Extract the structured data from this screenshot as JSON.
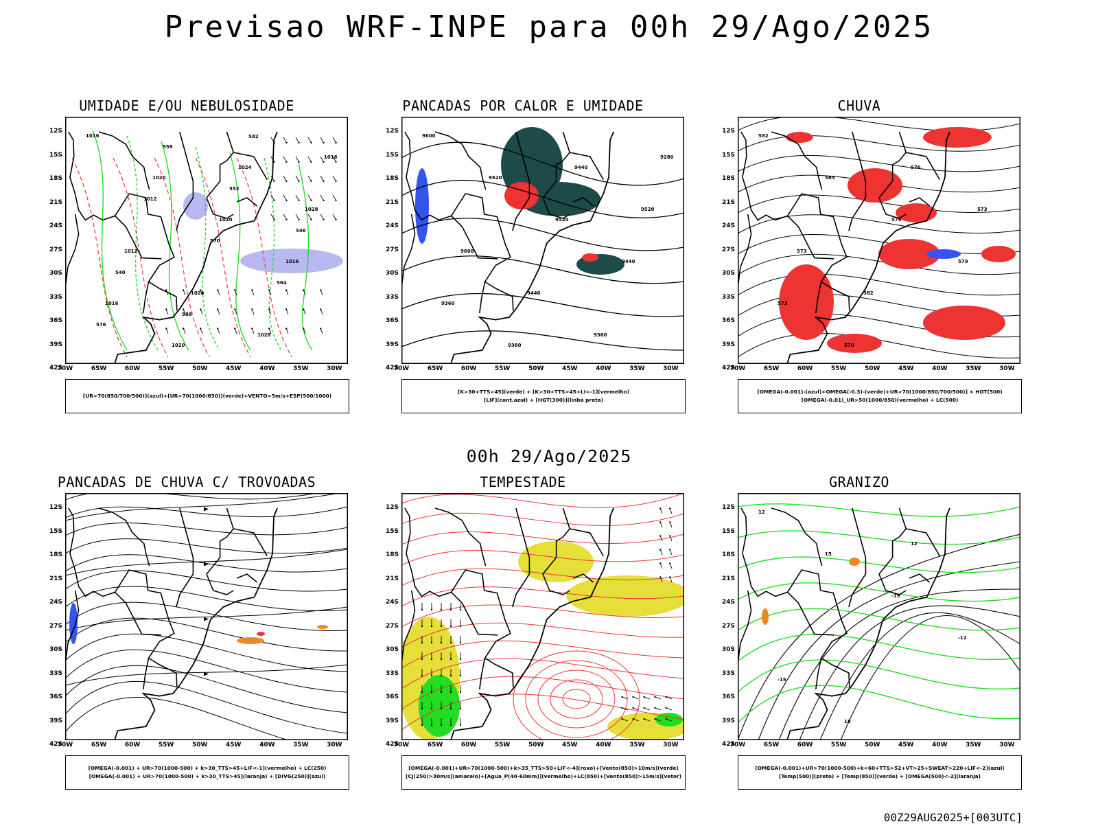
{
  "title": "Previsao WRF-INPE  para 00h 29/Ago/2025",
  "middle_title": "00h 29/Ago/2025",
  "stamp": "00Z29AUG2025+[003UTC]",
  "colors": {
    "red": "#ee3333",
    "green": "#22dd22",
    "blue": "#3355ee",
    "lavender": "#b9b9f2",
    "teal": "#1f4a4a",
    "yellow": "#e6df3a",
    "orange": "#ee8822"
  },
  "chart_data": [
    {
      "type": "map",
      "title": "UMIDADE E/OU NEBULOSIDADE",
      "legend": [
        "[UR>70(850/700/500)](azul)+[UR>70(1000/850)](verde)+VENTO>5m/s+ESP(500/1000)"
      ],
      "contour_labels": [
        "1016",
        "1020",
        "1020",
        "1016",
        "1016",
        "1020",
        "1024",
        "1028",
        "1012",
        "1024",
        "1028",
        "1016",
        "1012",
        "570",
        "564",
        "576",
        "558",
        "552",
        "546",
        "540",
        "588",
        "582"
      ]
    },
    {
      "type": "map",
      "title": "PANCADAS POR CALOR E UMIDADE",
      "legend": [
        "[K>30+TTS>45](verde) + [K>30+TTS>45+LI<-1](vermelho)",
        "[LIF](cont.azul) + [HGT(300)](linha preta)"
      ],
      "contour_labels": [
        "9600",
        "9520",
        "9520",
        "9440",
        "9360",
        "9360",
        "9440",
        "9520",
        "9600",
        "9440",
        "9360",
        "9280"
      ]
    },
    {
      "type": "map",
      "title": "CHUVA",
      "legend": [
        "[OMEGA(-0.001)-(azul)+OMEGA(-0.3)-(verde)+UR>70(1000/850/700/500)] + HGT(500)",
        "[OMEGA(-0.01)_UR>50(1000/850)(vermelho) + LC(500)"
      ],
      "contour_labels": [
        "582",
        "585",
        "576",
        "579",
        "573",
        "570",
        "576",
        "573",
        "573",
        "582"
      ]
    },
    {
      "type": "map",
      "title": "PANCADAS DE CHUVA C/ TROVOADAS",
      "legend": [
        "[OMEGA(-0.001) + UR>70(1000-500) + k>30_TTS>45+LIF<-1](vermelho) + LC(250)",
        "[OMEGA(-0.001) + UR>70(1000-500) + k>30_TTS>45](laranja) + [DIVG(250)](azul)"
      ],
      "contour_labels": []
    },
    {
      "type": "map",
      "title": "TEMPESTADE",
      "legend": [
        "[OMEGA(-0.001)+UR>70(1000-500)+k>35_TTS>50+LIF<-4](roxo)+[Vento(850)>10m/s](verde)",
        "[CJ(250)>30m/s](amarelo)+[Agua_P(40-60mm)](vermelho)+LC(850)+[Vento(850)>15m/s](vetor)"
      ],
      "contour_labels": []
    },
    {
      "type": "map",
      "title": "GRANIZO",
      "legend": [
        "[OMEGA(-0.001)+UR>70(1000-500)+k<60+TTS>52+VT>25+SWEAT>220+LIF<-2](azul)",
        "[Temp(500)](preto) + [Temp(850)](verde) + [OMEGA(500)<-2](laranja)"
      ],
      "contour_labels": [
        "12",
        "15",
        "-15",
        "-12",
        "-15",
        "18",
        "12"
      ]
    }
  ],
  "lat_labels": [
    "12S",
    "15S",
    "18S",
    "21S",
    "24S",
    "27S",
    "30S",
    "33S",
    "36S",
    "39S",
    "42S"
  ],
  "lon_labels": [
    "70W",
    "65W",
    "60W",
    "55W",
    "50W",
    "45W",
    "40W",
    "35W",
    "30W"
  ]
}
